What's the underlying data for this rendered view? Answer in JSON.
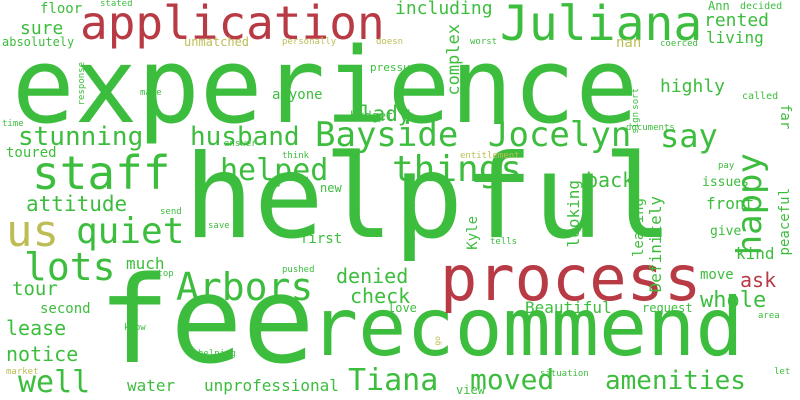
{
  "colors": {
    "background": "#ffffff",
    "green": "#3dbd3d",
    "red": "#b83a44",
    "olive": "#bdbd55"
  },
  "words": [
    {
      "text": "experience",
      "color": "green"
    },
    {
      "text": "helpful",
      "color": "green"
    },
    {
      "text": "fee",
      "color": "green"
    },
    {
      "text": "recommend",
      "color": "green"
    },
    {
      "text": "process",
      "color": "red"
    },
    {
      "text": "application",
      "color": "red"
    },
    {
      "text": "Juliana",
      "color": "green"
    },
    {
      "text": "Bayside",
      "color": "green"
    },
    {
      "text": "Jocelyn",
      "color": "green"
    },
    {
      "text": "staff",
      "color": "green"
    },
    {
      "text": "things",
      "color": "green"
    },
    {
      "text": "happy",
      "color": "green"
    },
    {
      "text": "say",
      "color": "green"
    },
    {
      "text": "Arbors",
      "color": "green"
    },
    {
      "text": "lots",
      "color": "green"
    },
    {
      "text": "us",
      "color": "olive"
    },
    {
      "text": "quiet",
      "color": "green"
    },
    {
      "text": "helped",
      "color": "green"
    },
    {
      "text": "stunning",
      "color": "green"
    },
    {
      "text": "husband",
      "color": "green"
    },
    {
      "text": "Tiana",
      "color": "green"
    },
    {
      "text": "moved",
      "color": "green"
    },
    {
      "text": "amenities",
      "color": "green"
    },
    {
      "text": "well",
      "color": "green"
    },
    {
      "text": "attitude",
      "color": "green"
    },
    {
      "text": "lady",
      "color": "green"
    },
    {
      "text": "rented",
      "color": "green"
    },
    {
      "text": "living",
      "color": "green"
    },
    {
      "text": "including",
      "color": "green"
    },
    {
      "text": "sure",
      "color": "green"
    },
    {
      "text": "highly",
      "color": "green"
    },
    {
      "text": "back",
      "color": "green"
    },
    {
      "text": "tour",
      "color": "green"
    },
    {
      "text": "lease",
      "color": "green"
    },
    {
      "text": "notice",
      "color": "green"
    },
    {
      "text": "denied",
      "color": "green"
    },
    {
      "text": "check",
      "color": "green"
    },
    {
      "text": "whole",
      "color": "green"
    },
    {
      "text": "ask",
      "color": "red"
    },
    {
      "text": "much",
      "color": "green"
    },
    {
      "text": "second",
      "color": "green"
    },
    {
      "text": "Beautiful",
      "color": "green"
    },
    {
      "text": "water",
      "color": "green"
    },
    {
      "text": "unprofessional",
      "color": "green"
    },
    {
      "text": "complex",
      "color": "green"
    },
    {
      "text": "front",
      "color": "green"
    },
    {
      "text": "kind",
      "color": "green"
    },
    {
      "text": "peaceful",
      "color": "green"
    },
    {
      "text": "far",
      "color": "green"
    },
    {
      "text": "Definitely",
      "color": "green"
    },
    {
      "text": "leasing",
      "color": "green"
    },
    {
      "text": "looking",
      "color": "green"
    },
    {
      "text": "toured",
      "color": "green"
    },
    {
      "text": "floor",
      "color": "green"
    },
    {
      "text": "absolutely",
      "color": "green"
    },
    {
      "text": "anyone",
      "color": "green"
    },
    {
      "text": "budget",
      "color": "green"
    },
    {
      "text": "first",
      "color": "green"
    },
    {
      "text": "super",
      "color": "green"
    },
    {
      "text": "Kyle",
      "color": "green"
    },
    {
      "text": "move",
      "color": "green"
    },
    {
      "text": "issues",
      "color": "green"
    },
    {
      "text": "give",
      "color": "green"
    },
    {
      "text": "Ann",
      "color": "green"
    },
    {
      "text": "nan",
      "color": "olive"
    },
    {
      "text": "new",
      "color": "green"
    },
    {
      "text": "unmatched",
      "color": "olive"
    },
    {
      "text": "love",
      "color": "green"
    },
    {
      "text": "request",
      "color": "green"
    },
    {
      "text": "view",
      "color": "green"
    },
    {
      "text": "stated",
      "color": "green"
    },
    {
      "text": "decided",
      "color": "green"
    },
    {
      "text": "worst",
      "color": "green"
    },
    {
      "text": "personally",
      "color": "olive"
    },
    {
      "text": "doesn",
      "color": "olive"
    },
    {
      "text": "coerced",
      "color": "green"
    },
    {
      "text": "pressure",
      "color": "green"
    },
    {
      "text": "called",
      "color": "green"
    },
    {
      "text": "sort",
      "color": "green"
    },
    {
      "text": "sign",
      "color": "green"
    },
    {
      "text": "documents",
      "color": "green"
    },
    {
      "text": "response",
      "color": "green"
    },
    {
      "text": "make",
      "color": "green"
    },
    {
      "text": "time",
      "color": "green"
    },
    {
      "text": "answer",
      "color": "green"
    },
    {
      "text": "think",
      "color": "green"
    },
    {
      "text": "entitlement",
      "color": "olive"
    },
    {
      "text": "pay",
      "color": "green"
    },
    {
      "text": "send",
      "color": "green"
    },
    {
      "text": "save",
      "color": "green"
    },
    {
      "text": "stop",
      "color": "green"
    },
    {
      "text": "pushed",
      "color": "green"
    },
    {
      "text": "tells",
      "color": "green"
    },
    {
      "text": "know",
      "color": "green"
    },
    {
      "text": "helping",
      "color": "green"
    },
    {
      "text": "market",
      "color": "olive"
    },
    {
      "text": "go",
      "color": "olive"
    },
    {
      "text": "situation",
      "color": "green"
    },
    {
      "text": "let",
      "color": "green"
    },
    {
      "text": "area",
      "color": "green"
    }
  ]
}
